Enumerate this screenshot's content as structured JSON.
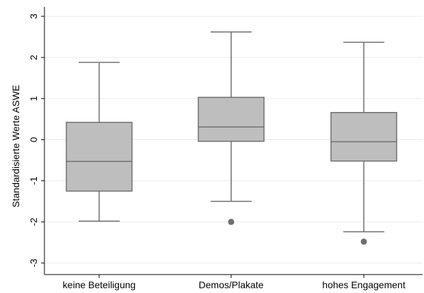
{
  "chart_data": {
    "type": "box",
    "ylabel": "Standardisierte Werte ASWE",
    "xlabel": "",
    "ylim": [
      -3.3,
      3.3
    ],
    "yticks": [
      -3,
      -2,
      -1,
      0,
      1,
      2,
      3
    ],
    "ytick_labels": [
      "-3",
      "-2",
      "-1",
      "0",
      "1",
      "2",
      "3"
    ],
    "grid": "horizontal",
    "categories": [
      "keine Beteiligung",
      "Demos/Plakate",
      "hohes Engagement"
    ],
    "boxes": [
      {
        "category": "keine Beteiligung",
        "whisker_low": -1.98,
        "q1": -1.25,
        "median": -0.53,
        "q3": 0.42,
        "whisker_high": 1.88,
        "outliers": []
      },
      {
        "category": "Demos/Plakate",
        "whisker_low": -1.5,
        "q1": -0.04,
        "median": 0.31,
        "q3": 1.03,
        "whisker_high": 2.62,
        "outliers": [
          -2.0
        ]
      },
      {
        "category": "hohes Engagement",
        "whisker_low": -2.24,
        "q1": -0.52,
        "median": -0.05,
        "q3": 0.66,
        "whisker_high": 2.37,
        "outliers": [
          -2.48
        ]
      }
    ],
    "colors": {
      "box_fill": "#bebebe",
      "stroke": "#6e6e6e",
      "grid": "#eaeaea",
      "axis": "#000000"
    }
  }
}
